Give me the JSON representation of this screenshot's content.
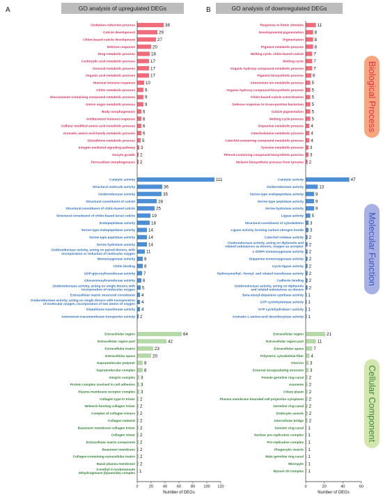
{
  "colors": {
    "bp_bar": "#f26b7a",
    "bp_text": "#d9305c",
    "bp_pill": "#f7a67e",
    "bp_pill_text": "#e2314a",
    "mf_bar": "#4d8fd6",
    "mf_text": "#2f6fb9",
    "mf_pill": "#a7b1e6",
    "mf_pill_text": "#3f56b8",
    "cc_bar": "#b5d8a8",
    "cc_text": "#2e7d33",
    "cc_pill": "#d2e6ad",
    "cc_pill_text": "#3f8a3a",
    "title_bg": "#bcbcbc"
  },
  "categories": {
    "bp": "Biological Process",
    "mf": "Molecular Function",
    "cc": "Cellular Component"
  },
  "chart_data": [
    {
      "type": "bar",
      "orientation": "horizontal",
      "panel_label": "A",
      "title": "GO analysis of upregulated DEGs",
      "xlabel": "Number of DEGs",
      "xlim": [
        0,
        120
      ],
      "xticks": [
        "0",
        "20",
        "40",
        "60",
        "80",
        "100",
        "120"
      ],
      "groups": [
        {
          "category": "bp",
          "items": [
            {
              "label": "Oxidation-reduction process",
              "value": 38
            },
            {
              "label": "Cuticle development",
              "value": 29
            },
            {
              "label": "Chitin-based cuticle development",
              "value": 27
            },
            {
              "label": "Defense response",
              "value": 20
            },
            {
              "label": "Drug metabolic process",
              "value": 18
            },
            {
              "label": "Carboxylic acid metabolic process",
              "value": 17
            },
            {
              "label": "Oxoacid metabolic process",
              "value": 17
            },
            {
              "label": "Organic acid metabolic process",
              "value": 17
            },
            {
              "label": "Humoral immune response",
              "value": 10
            },
            {
              "label": "Chitin metabolic process",
              "value": 9
            },
            {
              "label": "Glucosamine-containing compound metabolic process",
              "value": 9
            },
            {
              "label": "Amino sugar metabolic process",
              "value": 9
            },
            {
              "label": "Body morphogenesis",
              "value": 6
            },
            {
              "label": "Antibacterial humoral response",
              "value": 6
            },
            {
              "label": "Cellular modified amino acid metabolic process",
              "value": 6
            },
            {
              "label": "Aromatic amino acid family metabolic process",
              "value": 6
            },
            {
              "label": "Glutathione metabolic process",
              "value": 5
            },
            {
              "label": "Integrin-mediated signaling pathway",
              "value": 3
            },
            {
              "label": "Oocyte growth",
              "value": 2
            },
            {
              "label": "Pericardium morphogenesis",
              "value": 2
            }
          ]
        },
        {
          "category": "mf",
          "items": [
            {
              "label": "Catalytic activity",
              "value": 111
            },
            {
              "label": "Structural molecule activity",
              "value": 36
            },
            {
              "label": "Oxidoreductase activity",
              "value": 35
            },
            {
              "label": "Structural constituent of cuticle",
              "value": 28
            },
            {
              "label": "Structural constituent of chitin-based cuticle",
              "value": 25
            },
            {
              "label": "Structural constituent of chitin-based larval cuticle",
              "value": 19
            },
            {
              "label": "Endopeptidase activity",
              "value": 18
            },
            {
              "label": "Serine-type endopeptidase activity",
              "value": 14
            },
            {
              "label": "Serine-type peptidase activity",
              "value": 14
            },
            {
              "label": "Serine hydrolase activity",
              "value": 14
            },
            {
              "label": "Oxidoreductase activity, acting on paired donors, with|incorporation or reduction of molecular oxygen",
              "value": 11
            },
            {
              "label": "Monooxygenase activity",
              "value": 8
            },
            {
              "label": "Chitin binding",
              "value": 8
            },
            {
              "label": "UDP-glycosyltransferase activity",
              "value": 7
            },
            {
              "label": "Glucuronosyltransferase activity",
              "value": 6
            },
            {
              "label": "Oxidoreductase activity, acting on single donors with|incorporation of molecular oxygen",
              "value": 5
            },
            {
              "label": "Extracellular matrix structural constituent",
              "value": 4
            },
            {
              "label": "Oxidoreductase activity, acting on single donors with incorporation|of molecular oxygen, incorporation of two atoms of oxygen",
              "value": 4
            },
            {
              "label": "Glutathione transferase activity",
              "value": 4
            },
            {
              "label": "Ammonium transmembrane transporter activity",
              "value": 2
            }
          ]
        },
        {
          "category": "cc",
          "items": [
            {
              "label": "Extracellular region",
              "value": 64
            },
            {
              "label": "Extracellular region part",
              "value": 42
            },
            {
              "label": "Extracellular matrix",
              "value": 23
            },
            {
              "label": "Extracellular space",
              "value": 20
            },
            {
              "label": "Supramolecular polymer",
              "value": 8
            },
            {
              "label": "Supramolecular complex",
              "value": 8
            },
            {
              "label": "Integrin complex",
              "value": 3
            },
            {
              "label": "Protein complex involved in cell adhesion",
              "value": 3
            },
            {
              "label": "Plasma membrane receptor complex",
              "value": 3
            },
            {
              "label": "Collagen type IV trimer",
              "value": 2
            },
            {
              "label": "Network-forming collagen trimer",
              "value": 2
            },
            {
              "label": "Complex of collagen trimers",
              "value": 2
            },
            {
              "label": "Collagen network",
              "value": 2
            },
            {
              "label": "Basement membrane collagen trimer",
              "value": 2
            },
            {
              "label": "Collagen trimer",
              "value": 2
            },
            {
              "label": "Extracellular matrix component",
              "value": 2
            },
            {
              "label": "Basement membrane",
              "value": 2
            },
            {
              "label": "Collagen-containing extracellular matrix",
              "value": 2
            },
            {
              "label": "Basal plasma membrane",
              "value": 2
            },
            {
              "label": "3-methyl-2-oxobutanoate|dehydrogenase (lipoamide) complex",
              "value": 1
            }
          ]
        }
      ]
    },
    {
      "type": "bar",
      "orientation": "horizontal",
      "panel_label": "B",
      "title": "GO analysis of downregulated DEGs",
      "xlabel": "Number of DEGs",
      "xlim": [
        0,
        60
      ],
      "xticks": [
        "0",
        "20",
        "40",
        "60"
      ],
      "groups": [
        {
          "category": "bp",
          "items": [
            {
              "label": "Response to biotic stimulus",
              "value": 11
            },
            {
              "label": "Developmental pigmentation",
              "value": 8
            },
            {
              "label": "Pigmentation",
              "value": 8
            },
            {
              "label": "Pigment metabolic process",
              "value": 8
            },
            {
              "label": "Molting cycle, chitin-based cuticle",
              "value": 7
            },
            {
              "label": "Molting cycle",
              "value": 7
            },
            {
              "label": "Organic hydroxy compound metabolic process",
              "value": 7
            },
            {
              "label": "Pigment biosynthetic process",
              "value": 6
            },
            {
              "label": "Ammonium ion metabolic process",
              "value": 5
            },
            {
              "label": "Organic hydroxy compound biosynthetic process",
              "value": 5
            },
            {
              "label": "Chitin-based cuticle sclerotization",
              "value": 5
            },
            {
              "label": "Defense response to Gram-positive bacterium",
              "value": 5
            },
            {
              "label": "Cuticle pigmentation",
              "value": 5
            },
            {
              "label": "Molting cycle process",
              "value": 5
            },
            {
              "label": "Dopamine metabolic process",
              "value": 4
            },
            {
              "label": "Catecholamine metabolic process",
              "value": 4
            },
            {
              "label": "Catechol-containing compound metabolic process",
              "value": 4
            },
            {
              "label": "Tyrosine metabolic process",
              "value": 3
            },
            {
              "label": "Phenol-containing compound biosynthetic process",
              "value": 3
            },
            {
              "label": "Melanin biosynthetic process from tyrosine",
              "value": 2
            }
          ]
        },
        {
          "category": "mf",
          "items": [
            {
              "label": "Catalytic activity",
              "value": 47
            },
            {
              "label": "Oxidoreductase activity",
              "value": 13
            },
            {
              "label": "Serine-type endopeptidase activity",
              "value": 9
            },
            {
              "label": "Serine-type peptidase activity",
              "value": 9
            },
            {
              "label": "Serine hydrolase activity",
              "value": 9
            },
            {
              "label": "Ligase activity",
              "value": 5
            },
            {
              "label": "Structural constituent of cytoskeleton",
              "value": 3
            },
            {
              "label": "Ligase activity, forming carbon-nitrogen bonds",
              "value": 3
            },
            {
              "label": "Catechol oxidase activity",
              "value": 2
            },
            {
              "label": "Oxidoreductase activity, acting on diphenols and|related substances as donors, oxygen as acceptor",
              "value": 2
            },
            {
              "label": "L-DOPA monooxygenase activity",
              "value": 2
            },
            {
              "label": "Dopamine monooxygenase activity",
              "value": 2
            },
            {
              "label": "Cyclo-ligase activity",
              "value": 2
            },
            {
              "label": "Hydroxymethyl-, formyl- and related transferase activity",
              "value": 2
            },
            {
              "label": "Cadherin binding",
              "value": 2
            },
            {
              "label": "Oxidoreductase activity, acting on diphenols|and related substances as donors",
              "value": 2
            },
            {
              "label": "Beta-alanyl-dopamine synthase activity",
              "value": 1
            },
            {
              "label": "GTP cyclohydrolase activity",
              "value": 1
            },
            {
              "label": "GTP cyclohydrolase I activity",
              "value": 1
            },
            {
              "label": "Aromatic-L-amino-acid decarboxylase activity",
              "value": 1
            }
          ]
        },
        {
          "category": "cc",
          "items": [
            {
              "label": "Extracellular region",
              "value": 21
            },
            {
              "label": "Extracellular region part",
              "value": 11
            },
            {
              "label": "Extracellular space",
              "value": 7
            },
            {
              "label": "Polymeric cytoskeletal fiber",
              "value": 4
            },
            {
              "label": "Chorion",
              "value": 3
            },
            {
              "label": "External encapsulating structure",
              "value": 3
            },
            {
              "label": "Female germline ring canal",
              "value": 2
            },
            {
              "label": "Axoneme",
              "value": 2
            },
            {
              "label": "Ciliary plasm",
              "value": 2
            },
            {
              "label": "Plasma membrane bounded cell projection cytoplasm",
              "value": 2
            },
            {
              "label": "Germline ring canal",
              "value": 2
            },
            {
              "label": "Endocytic vesicle",
              "value": 2
            },
            {
              "label": "Intercellular bridge",
              "value": 2
            },
            {
              "label": "Somatic ring canal",
              "value": 1
            },
            {
              "label": "Nuclear pre-replicative complex",
              "value": 1
            },
            {
              "label": "Pre-replicative complex",
              "value": 1
            },
            {
              "label": "Phagocytic vesicle",
              "value": 1
            },
            {
              "label": "Male germline ring canal",
              "value": 1
            },
            {
              "label": "Micropyle",
              "value": 1
            },
            {
              "label": "Myosin VII complex",
              "value": 1
            }
          ]
        }
      ]
    }
  ]
}
